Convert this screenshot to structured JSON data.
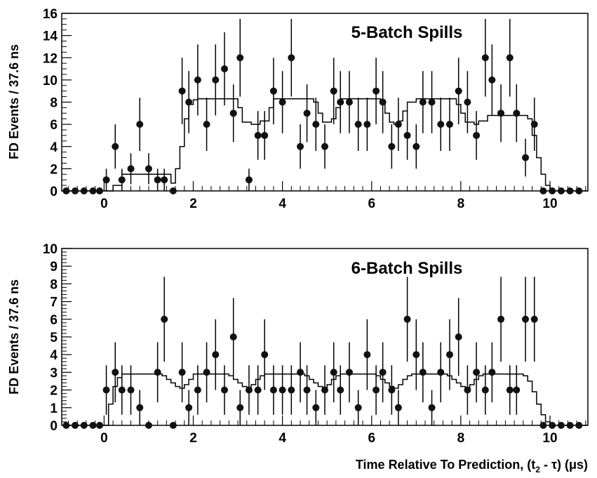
{
  "figure": {
    "xlabel": "Time Relative To Prediction, (t",
    "xlabel_sub": "2",
    "xlabel_tail": " - τ) (μs)"
  },
  "chart_data": [
    {
      "type": "scatter",
      "title": "5-Batch Spills",
      "ylabel": "FD Events / 37.6 ns",
      "xlim": [
        -0.95,
        10.85
      ],
      "ylim": [
        0,
        16
      ],
      "xticks": [
        0,
        2,
        4,
        6,
        8,
        10
      ],
      "xtick_labels": [
        "0",
        "2",
        "4",
        "6",
        "8",
        "10"
      ],
      "yticks": [
        0,
        2,
        4,
        6,
        8,
        10,
        12,
        14,
        16
      ],
      "ytick_labels": [
        "0",
        "2",
        "4",
        "6",
        "8",
        "10",
        "12",
        "14",
        "16"
      ],
      "grid": false,
      "points": {
        "x": [
          -0.85,
          -0.65,
          -0.45,
          -0.25,
          -0.1,
          0.05,
          0.25,
          0.4,
          0.6,
          0.8,
          1.0,
          1.2,
          1.35,
          1.55,
          1.75,
          1.9,
          2.1,
          2.3,
          2.5,
          2.7,
          2.9,
          3.05,
          3.25,
          3.45,
          3.6,
          3.8,
          4.0,
          4.2,
          4.4,
          4.55,
          4.75,
          4.95,
          5.15,
          5.3,
          5.5,
          5.7,
          5.9,
          6.1,
          6.25,
          6.45,
          6.6,
          6.8,
          7.0,
          7.15,
          7.35,
          7.55,
          7.75,
          7.95,
          8.15,
          8.35,
          8.55,
          8.7,
          8.9,
          9.1,
          9.25,
          9.45,
          9.65,
          9.85,
          10.05,
          10.25,
          10.45,
          10.65
        ],
        "y": [
          0,
          0,
          0,
          0,
          0,
          1,
          4,
          1,
          2,
          6,
          2,
          1,
          1,
          0,
          9,
          8,
          10,
          6,
          10,
          11,
          7,
          12,
          1,
          5,
          5,
          9,
          8,
          12,
          4,
          7,
          6,
          4,
          9,
          8,
          8,
          6,
          6,
          9,
          8,
          4,
          6,
          5,
          4,
          8,
          8,
          6,
          6,
          9,
          8,
          5,
          12,
          10,
          7,
          12,
          7,
          3,
          6,
          0,
          0,
          0,
          0,
          0
        ],
        "err": [
          0,
          0,
          0,
          0,
          0,
          1,
          2,
          1,
          1.4,
          2.4,
          1.4,
          1,
          1,
          0,
          3,
          2.8,
          3.2,
          2.4,
          3.2,
          3.3,
          2.6,
          3.5,
          1,
          2.2,
          2.2,
          3,
          2.8,
          3.5,
          2,
          2.6,
          2.4,
          2,
          3,
          2.8,
          2.8,
          2.4,
          2.4,
          3,
          2.8,
          2,
          2.4,
          2.2,
          2,
          2.8,
          2.8,
          2.4,
          2.4,
          3,
          2.8,
          2.2,
          3.5,
          3.2,
          2.6,
          3.5,
          2.6,
          1.7,
          2.4,
          0,
          0,
          0,
          0,
          0
        ]
      },
      "model": {
        "x": [
          -0.95,
          0,
          0.2,
          0.4,
          1.3,
          1.5,
          1.6,
          1.7,
          1.8,
          1.9,
          2.0,
          2.1,
          2.9,
          3.0,
          3.1,
          3.3,
          3.5,
          3.7,
          3.8,
          4.6,
          4.7,
          4.8,
          4.9,
          5.1,
          5.2,
          5.3,
          6.1,
          6.2,
          6.3,
          6.4,
          6.5,
          6.6,
          6.7,
          6.8,
          7.0,
          7.8,
          7.9,
          8.0,
          8.1,
          8.3,
          8.4,
          8.6,
          9.4,
          9.5,
          9.6,
          9.7,
          9.8,
          9.9,
          10.0,
          10.85
        ],
        "y": [
          0,
          0,
          0.5,
          1.5,
          1.5,
          0.7,
          2,
          4,
          6.5,
          7.8,
          8.2,
          8.3,
          8.3,
          7.5,
          6.2,
          6,
          6.3,
          7.5,
          8.3,
          8.3,
          8,
          7,
          6.2,
          6.5,
          7.5,
          8.3,
          8.3,
          8,
          7,
          6.2,
          6,
          6.3,
          7.2,
          8,
          8.3,
          8.3,
          7.8,
          7,
          6.2,
          6,
          6.3,
          6.8,
          6.8,
          6.5,
          5,
          3,
          1.5,
          0.5,
          0,
          0
        ]
      }
    },
    {
      "type": "scatter",
      "title": "6-Batch Spills",
      "ylabel": "FD Events / 37.6 ns",
      "xlim": [
        -0.95,
        10.85
      ],
      "ylim": [
        0,
        10
      ],
      "xticks": [
        0,
        2,
        4,
        6,
        8,
        10
      ],
      "xtick_labels": [
        "0",
        "2",
        "4",
        "6",
        "8",
        "10"
      ],
      "yticks": [
        0,
        1,
        2,
        3,
        4,
        5,
        6,
        7,
        8,
        9,
        10
      ],
      "ytick_labels": [
        "0",
        "1",
        "2",
        "3",
        "4",
        "5",
        "6",
        "7",
        "8",
        "9",
        "10"
      ],
      "grid": false,
      "points": {
        "x": [
          -0.85,
          -0.65,
          -0.45,
          -0.25,
          -0.1,
          0.05,
          0.25,
          0.4,
          0.6,
          0.8,
          1.0,
          1.2,
          1.35,
          1.55,
          1.75,
          1.9,
          2.1,
          2.3,
          2.5,
          2.7,
          2.9,
          3.05,
          3.25,
          3.45,
          3.6,
          3.8,
          4.0,
          4.2,
          4.4,
          4.55,
          4.75,
          4.95,
          5.15,
          5.3,
          5.5,
          5.7,
          5.9,
          6.1,
          6.25,
          6.45,
          6.6,
          6.8,
          7.0,
          7.15,
          7.35,
          7.55,
          7.75,
          7.95,
          8.15,
          8.35,
          8.55,
          8.7,
          8.9,
          9.1,
          9.25,
          9.45,
          9.65,
          9.85,
          10.05,
          10.25,
          10.45,
          10.65
        ],
        "y": [
          0,
          0,
          0,
          0,
          0,
          2,
          3,
          2,
          2,
          1,
          0,
          3,
          6,
          0,
          3,
          1,
          2,
          3,
          4,
          2,
          5,
          1,
          2,
          2,
          4,
          2,
          2,
          2,
          3,
          2,
          1,
          2,
          3,
          2,
          3,
          1,
          4,
          2,
          3,
          2,
          1,
          6,
          4,
          3,
          1,
          3,
          4,
          5,
          2,
          3,
          2,
          3,
          6,
          2,
          2,
          6,
          6,
          0,
          0,
          0,
          0,
          0
        ],
        "err": [
          0,
          0,
          0,
          0,
          0,
          1.4,
          1.7,
          1.4,
          1.4,
          1,
          0,
          1.7,
          2.4,
          0,
          1.7,
          1,
          1.4,
          1.7,
          2,
          1.4,
          2.2,
          1,
          1.4,
          1.4,
          2,
          1.4,
          1.4,
          1.4,
          1.7,
          1.4,
          1,
          1.4,
          1.7,
          1.4,
          1.7,
          1,
          2,
          1.4,
          1.7,
          1.4,
          1,
          2.4,
          2,
          1.7,
          1,
          1.7,
          2,
          2.2,
          1.4,
          1.7,
          1.4,
          1.7,
          2.4,
          1.4,
          1.4,
          2.4,
          2.4,
          0,
          0,
          0,
          0,
          0
        ]
      },
      "model": {
        "x": [
          -0.95,
          0,
          0.1,
          0.2,
          0.3,
          0.4,
          1.2,
          1.3,
          1.4,
          1.5,
          1.6,
          1.7,
          1.8,
          1.9,
          2.0,
          2.7,
          2.8,
          2.9,
          3.0,
          3.1,
          3.2,
          3.3,
          3.4,
          3.5,
          3.6,
          4.4,
          4.5,
          4.6,
          4.7,
          4.8,
          4.9,
          5.0,
          5.1,
          5.2,
          5.3,
          6.0,
          6.1,
          6.2,
          6.3,
          6.4,
          6.5,
          6.6,
          6.7,
          6.8,
          6.9,
          7.6,
          7.7,
          7.8,
          7.9,
          8.0,
          8.1,
          8.2,
          8.3,
          8.4,
          8.5,
          9.3,
          9.4,
          9.5,
          9.6,
          9.7,
          9.8,
          9.9,
          10.0,
          10.85
        ],
        "y": [
          0,
          0,
          1.2,
          2.2,
          2.7,
          2.9,
          2.9,
          2.8,
          2.6,
          2.4,
          2.2,
          2.1,
          2.3,
          2.6,
          2.9,
          2.9,
          2.8,
          2.6,
          2.4,
          2.2,
          2.1,
          2.3,
          2.6,
          2.8,
          2.9,
          2.9,
          2.8,
          2.6,
          2.4,
          2.2,
          2.1,
          2.3,
          2.6,
          2.8,
          2.9,
          2.9,
          2.8,
          2.6,
          2.4,
          2.2,
          2.1,
          2.3,
          2.6,
          2.8,
          2.9,
          2.9,
          2.8,
          2.6,
          2.4,
          2.2,
          2.1,
          2.3,
          2.6,
          2.8,
          2.9,
          2.9,
          2.8,
          2.5,
          1.9,
          1.2,
          0.6,
          0.2,
          0,
          0
        ]
      }
    }
  ]
}
